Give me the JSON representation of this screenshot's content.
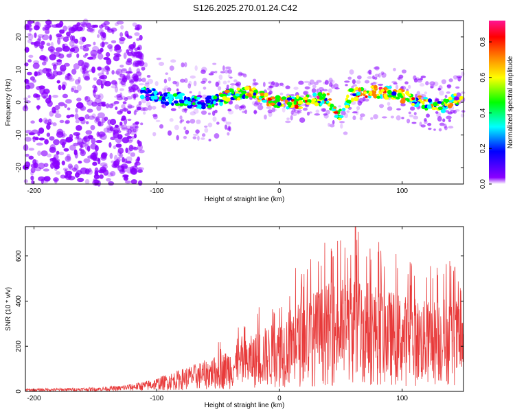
{
  "chart_data": [
    {
      "type": "heatmap",
      "title": "S126.2025.270.01.24.C42",
      "xlabel": "Height of straight line (km)",
      "ylabel": "Frequency (Hz)",
      "xlim": [
        -207,
        150
      ],
      "ylim": [
        -25,
        25
      ],
      "xticks": [
        -200,
        -100,
        0,
        100
      ],
      "yticks": [
        -20,
        -10,
        0,
        10,
        20
      ],
      "colorbar": {
        "label": "Normalized spectral amplitude",
        "range": [
          0,
          0.92
        ],
        "ticks": [
          0,
          0.2,
          0.4,
          0.6,
          0.8
        ],
        "colors": [
          "#ffffff",
          "#8a00ff",
          "#0000ff",
          "#00ffff",
          "#00ff00",
          "#ffff00",
          "#ff8000",
          "#ff0000",
          "#ff1493"
        ]
      },
      "ridge": [
        {
          "x": -110,
          "y": 3
        },
        {
          "x": -100,
          "y": 2
        },
        {
          "x": -90,
          "y": 1
        },
        {
          "x": -80,
          "y": 1
        },
        {
          "x": -70,
          "y": 0
        },
        {
          "x": -60,
          "y": 0
        },
        {
          "x": -50,
          "y": 1
        },
        {
          "x": -40,
          "y": 2
        },
        {
          "x": -30,
          "y": 3
        },
        {
          "x": -20,
          "y": 3
        },
        {
          "x": -10,
          "y": 1
        },
        {
          "x": 0,
          "y": 0
        },
        {
          "x": 10,
          "y": 0
        },
        {
          "x": 20,
          "y": 0
        },
        {
          "x": 30,
          "y": 1
        },
        {
          "x": 40,
          "y": 1
        },
        {
          "x": 47,
          "y": -3
        },
        {
          "x": 52,
          "y": -4
        },
        {
          "x": 57,
          "y": 2
        },
        {
          "x": 65,
          "y": 3
        },
        {
          "x": 80,
          "y": 3
        },
        {
          "x": 95,
          "y": 3
        },
        {
          "x": 105,
          "y": 1
        },
        {
          "x": 115,
          "y": 0
        },
        {
          "x": 125,
          "y": -1
        },
        {
          "x": 135,
          "y": -1
        },
        {
          "x": 145,
          "y": 1
        }
      ]
    },
    {
      "type": "line",
      "xlabel": "Height of straight line (km)",
      "ylabel": "SNR (10 * v/v)",
      "xlim": [
        -207,
        150
      ],
      "ylim": [
        0,
        730
      ],
      "xticks": [
        -200,
        -100,
        0,
        100
      ],
      "yticks": [
        0,
        200,
        400,
        600
      ],
      "series": [
        {
          "name": "SNR",
          "color": "#e83a3a",
          "envelope": {
            "x": [
              -207,
              -180,
              -150,
              -130,
              -110,
              -100,
              -90,
              -80,
              -70,
              -60,
              -50,
              -40,
              -30,
              -20,
              -10,
              0,
              10,
              20,
              30,
              40,
              50,
              60,
              70,
              80,
              90,
              100,
              110,
              120,
              130,
              140,
              150
            ],
            "y": [
              12,
              14,
              18,
              25,
              45,
              60,
              80,
              100,
              120,
              140,
              160,
              190,
              220,
              260,
              290,
              310,
              380,
              420,
              450,
              480,
              500,
              520,
              500,
              480,
              450,
              430,
              420,
              400,
              420,
              420,
              400
            ]
          },
          "peak": {
            "x": 62,
            "y": 730
          }
        }
      ]
    }
  ]
}
